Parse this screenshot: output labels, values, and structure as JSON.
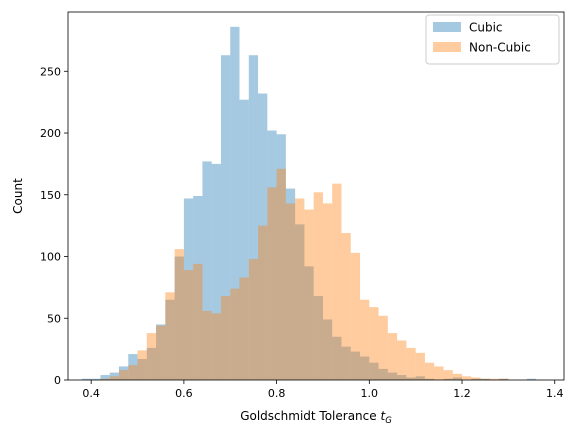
{
  "chart_data": {
    "type": "histogram",
    "title": "",
    "xlabel": "Goldschmidt Tolerance",
    "xlabel_symbol": "t",
    "xlabel_subscript": "G",
    "ylabel": "Count",
    "xlim": [
      0.35,
      1.42
    ],
    "ylim": [
      0,
      298
    ],
    "xticks": [
      0.4,
      0.6,
      0.8,
      1.0,
      1.2,
      1.4
    ],
    "xtick_labels": [
      "0.4",
      "0.6",
      "0.8",
      "1.0",
      "1.2",
      "1.4"
    ],
    "yticks": [
      0,
      50,
      100,
      150,
      200,
      250
    ],
    "ytick_labels": [
      "0",
      "50",
      "100",
      "150",
      "200",
      "250"
    ],
    "bin_start": 0.38,
    "bin_width": 0.02,
    "legend_position": "top-right",
    "grid": false,
    "series": [
      {
        "name": "Cubic",
        "color": "#1f77b4",
        "opacity": 0.4,
        "values": [
          1,
          1,
          4,
          6,
          11,
          21,
          17,
          26,
          45,
          65,
          100,
          147,
          149,
          177,
          175,
          263,
          286,
          227,
          263,
          232,
          202,
          199,
          155,
          126,
          92,
          68,
          49,
          35,
          27,
          23,
          19,
          14,
          9,
          6,
          4,
          2,
          3,
          1,
          0,
          1,
          2,
          0,
          1,
          1,
          0,
          1,
          0,
          0,
          1,
          0
        ]
      },
      {
        "name": "Non-Cubic",
        "color": "#ff7f0e",
        "opacity": 0.4,
        "values": [
          0,
          0,
          1,
          3,
          8,
          12,
          24,
          38,
          44,
          71,
          106,
          89,
          94,
          56,
          54,
          68,
          74,
          83,
          98,
          125,
          156,
          171,
          143,
          147,
          138,
          152,
          143,
          159,
          119,
          103,
          65,
          59,
          52,
          38,
          32,
          26,
          22,
          14,
          11,
          8,
          5,
          3,
          2,
          1,
          1,
          1,
          0,
          0,
          0,
          0
        ]
      }
    ]
  }
}
